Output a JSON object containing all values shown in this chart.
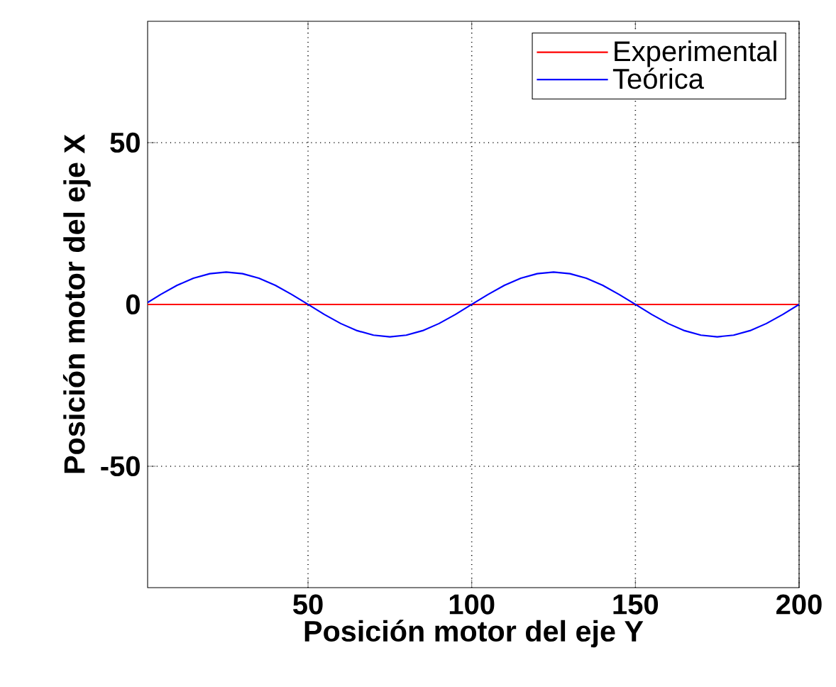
{
  "chart_data": {
    "type": "line",
    "xlabel": "Posición motor del eje Y",
    "ylabel": "Posición motor del eje X",
    "xlim": [
      1,
      200
    ],
    "ylim": [
      -87.5,
      87.5
    ],
    "xticks": [
      50,
      100,
      150,
      200
    ],
    "yticks": [
      -50,
      0,
      50
    ],
    "grid": true,
    "legend": "top right",
    "marker": "none",
    "line_style": "solid",
    "series": [
      {
        "name": "Experimental",
        "color": "#ff0000",
        "x": [
          1,
          200
        ],
        "values": [
          0,
          0
        ]
      },
      {
        "name": "Teórica",
        "color": "#0000ff",
        "x": [
          1,
          5,
          10,
          15,
          20,
          25,
          30,
          35,
          40,
          45,
          50,
          55,
          60,
          65,
          70,
          75,
          80,
          85,
          90,
          95,
          100,
          105,
          110,
          115,
          120,
          125,
          130,
          135,
          140,
          145,
          150,
          155,
          160,
          165,
          170,
          175,
          180,
          185,
          190,
          195,
          200
        ],
        "values": [
          0.6,
          3.1,
          5.9,
          8.1,
          9.5,
          10,
          9.5,
          8.1,
          5.9,
          3.1,
          0,
          -3.1,
          -5.9,
          -8.1,
          -9.5,
          -10,
          -9.5,
          -8.1,
          -5.9,
          -3.1,
          0,
          3.1,
          5.9,
          8.1,
          9.5,
          10,
          9.5,
          8.1,
          5.9,
          3.1,
          0,
          -3.1,
          -5.9,
          -8.1,
          -9.5,
          -10,
          -9.5,
          -8.1,
          -5.9,
          -3.1,
          0
        ]
      }
    ]
  }
}
